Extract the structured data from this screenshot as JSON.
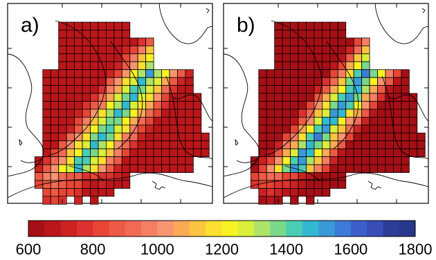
{
  "panels": [
    {
      "label": "a)"
    },
    {
      "label": "b)"
    }
  ],
  "colorbar": {
    "min": 600,
    "max": 1800,
    "tick_labels": [
      "600",
      "800",
      "1000",
      "1200",
      "1400",
      "1600",
      "1800"
    ],
    "colors": [
      "#a50f15",
      "#bb161a",
      "#cc2222",
      "#dd3030",
      "#e84535",
      "#ee5a45",
      "#f26a55",
      "#f57e65",
      "#f89570",
      "#fbab55",
      "#fcc540",
      "#fde030",
      "#f7f322",
      "#d9ef3a",
      "#aee36a",
      "#7ad88a",
      "#4acdb4",
      "#33b8d2",
      "#3a9ad8",
      "#3d7ad8",
      "#3c5fcc",
      "#3a4cb8",
      "#2d3d98",
      "#27378a"
    ]
  },
  "colors": {
    "grid_stroke": "#000000",
    "map_line": "#000000",
    "background": "#ffffff"
  }
}
